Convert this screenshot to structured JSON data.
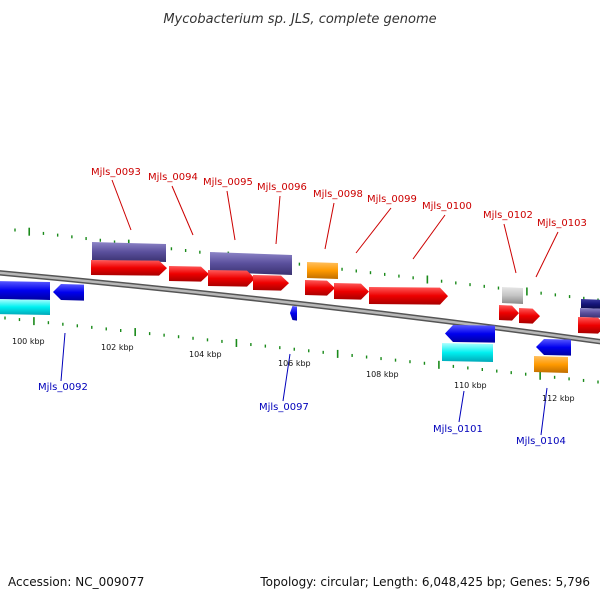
{
  "title": "Mycobacterium sp. JLS, complete genome",
  "footer": {
    "accession": "Accession: NC_009077",
    "summary": "Topology: circular; Length: 6,048,425 bp; Genes: 5,796"
  },
  "colors": {
    "forward_label": "#cc0000",
    "reverse_label": "#0000bb",
    "tick_marks": "#1a8a1a",
    "backbone": "#8c8c8c"
  },
  "kbp_labels": [
    "100 kbp",
    "102 kbp",
    "104 kbp",
    "106 kbp",
    "108 kbp",
    "110 kbp",
    "112 kbp"
  ],
  "gene_labels": {
    "forward": [
      "Mjls_0093",
      "Mjls_0094",
      "Mjls_0095",
      "Mjls_0096",
      "Mjls_0098",
      "Mjls_0099",
      "Mjls_0100",
      "Mjls_0102",
      "Mjls_0103"
    ],
    "reverse": [
      "Mjls_0092",
      "Mjls_0097",
      "Mjls_0101",
      "Mjls_0104"
    ]
  },
  "feature_colors": [
    "red",
    "blue",
    "slate-blue",
    "orange",
    "cyan",
    "grey",
    "navy"
  ]
}
